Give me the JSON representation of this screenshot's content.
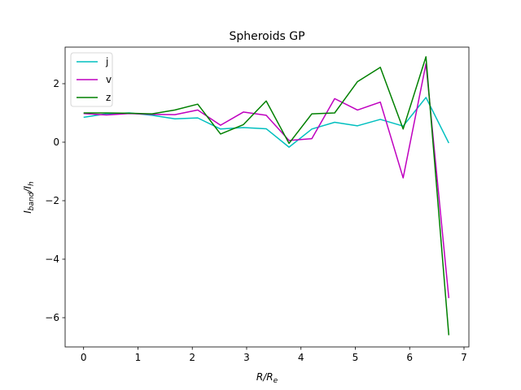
{
  "chart_data": {
    "type": "line",
    "title": "Spheroids GP",
    "xlabel": "R/R",
    "xlabel_sub": "e",
    "ylabel": "I",
    "ylabel_sub_band": "band",
    "ylabel_mid": "/I",
    "ylabel_sub_h": "h",
    "xlim": [
      -0.34,
      7.09
    ],
    "ylim": [
      -7.0,
      3.25
    ],
    "xticks": [
      0,
      1,
      2,
      3,
      4,
      5,
      6,
      7
    ],
    "yticks": [
      -6,
      -4,
      -2,
      0,
      2
    ],
    "grid": false,
    "legend_position": "upper left",
    "x": [
      0.0,
      0.42,
      0.84,
      1.26,
      1.68,
      2.1,
      2.52,
      2.94,
      3.36,
      3.78,
      4.2,
      4.62,
      5.04,
      5.46,
      5.88,
      6.3,
      6.72
    ],
    "series": [
      {
        "name": "j",
        "color": "#00bfbf",
        "values": [
          0.85,
          0.97,
          1.0,
          0.92,
          0.8,
          0.83,
          0.45,
          0.5,
          0.46,
          -0.17,
          0.45,
          0.68,
          0.56,
          0.78,
          0.55,
          1.53,
          -0.03
        ]
      },
      {
        "name": "v",
        "color": "#bf00bf",
        "values": [
          0.98,
          0.93,
          0.98,
          0.95,
          0.94,
          1.1,
          0.58,
          1.03,
          0.92,
          0.06,
          0.12,
          1.49,
          1.1,
          1.37,
          -1.22,
          2.68,
          -5.33
        ]
      },
      {
        "name": "z",
        "color": "#008000",
        "values": [
          1.0,
          1.0,
          0.99,
          0.97,
          1.1,
          1.3,
          0.28,
          0.6,
          1.41,
          -0.04,
          0.97,
          1.0,
          2.07,
          2.56,
          0.45,
          2.92,
          -6.6
        ]
      }
    ]
  }
}
